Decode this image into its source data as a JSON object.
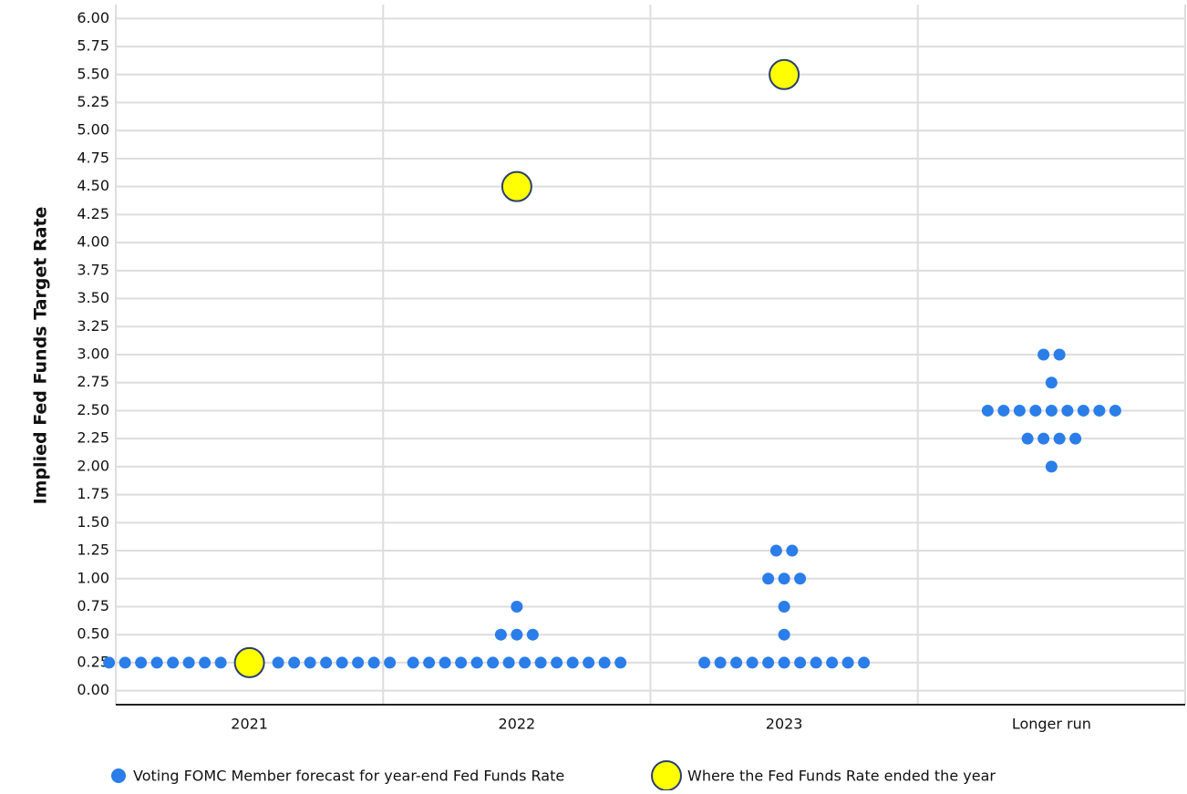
{
  "chart_data": {
    "type": "dot",
    "y_label": "Implied Fed Funds Target Rate",
    "categories": [
      "2021",
      "2022",
      "2023",
      "Longer run"
    ],
    "series": [
      {
        "name": "Voting FOMC Member forecast for year-end Fed Funds Rate",
        "color": "#2b7de9",
        "values": [
          [
            0.25,
            0.25,
            0.25,
            0.25,
            0.25,
            0.25,
            0.25,
            0.25,
            0.25,
            0.25,
            0.25,
            0.25,
            0.25,
            0.25,
            0.25,
            0.25
          ],
          [
            0.25,
            0.25,
            0.25,
            0.25,
            0.25,
            0.25,
            0.25,
            0.25,
            0.25,
            0.25,
            0.25,
            0.25,
            0.25,
            0.25,
            0.5,
            0.5,
            0.5,
            0.75
          ],
          [
            0.25,
            0.25,
            0.25,
            0.25,
            0.25,
            0.25,
            0.25,
            0.25,
            0.25,
            0.25,
            0.25,
            0.5,
            0.75,
            1,
            1,
            1,
            1.25,
            1.25
          ],
          [
            2,
            2.25,
            2.25,
            2.25,
            2.25,
            2.5,
            2.5,
            2.5,
            2.5,
            2.5,
            2.5,
            2.5,
            2.5,
            2.5,
            2.75,
            3,
            3
          ]
        ]
      },
      {
        "name": "Where the Fed Funds Rate ended the year",
        "color": "#ffff00",
        "values": [
          0.25,
          4.5,
          5.5,
          null
        ]
      }
    ],
    "ylim": [
      -0.125,
      6.125
    ],
    "yticks": [
      {
        "value": 0,
        "label": "0.00"
      },
      {
        "value": 0.25,
        "label": "0.25"
      },
      {
        "value": 0.5,
        "label": "0.50"
      },
      {
        "value": 0.75,
        "label": "0.75"
      },
      {
        "value": 1,
        "label": "1.00"
      },
      {
        "value": 1.25,
        "label": "1.25"
      },
      {
        "value": 1.5,
        "label": "1.50"
      },
      {
        "value": 1.75,
        "label": "1.75"
      },
      {
        "value": 2,
        "label": "2.00"
      },
      {
        "value": 2.25,
        "label": "2.25"
      },
      {
        "value": 2.5,
        "label": "2.50"
      },
      {
        "value": 2.75,
        "label": "2.75"
      },
      {
        "value": 3,
        "label": "3.00"
      },
      {
        "value": 3.25,
        "label": "3.25"
      },
      {
        "value": 3.5,
        "label": "3.50"
      },
      {
        "value": 3.75,
        "label": "3.75"
      },
      {
        "value": 4,
        "label": "4.00"
      },
      {
        "value": 4.25,
        "label": "4.25"
      },
      {
        "value": 4.5,
        "label": "4.50"
      },
      {
        "value": 4.75,
        "label": "4.75"
      },
      {
        "value": 5,
        "label": "5.00"
      },
      {
        "value": 5.25,
        "label": "5.25"
      },
      {
        "value": 5.5,
        "label": "5.50"
      },
      {
        "value": 5.75,
        "label": "5.75"
      },
      {
        "value": 6,
        "label": "6.00"
      }
    ],
    "grid": true
  }
}
